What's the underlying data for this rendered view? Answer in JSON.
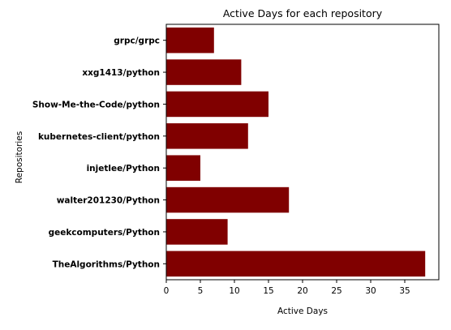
{
  "chart_data": {
    "type": "bar",
    "orientation": "horizontal",
    "title": "Active Days for each repository",
    "xlabel": "Active Days",
    "ylabel": "Repositories",
    "categories": [
      "TheAlgorithms/Python",
      "geekcomputers/Python",
      "walter201230/Python",
      "injetlee/Python",
      "kubernetes-client/python",
      "Show-Me-the-Code/python",
      "xxg1413/python",
      "grpc/grpc"
    ],
    "values": [
      38,
      9,
      18,
      5,
      12,
      15,
      11,
      7
    ],
    "xlim": [
      0,
      40
    ],
    "xticks": [
      "0",
      "5",
      "10",
      "15",
      "20",
      "25",
      "30",
      "35"
    ],
    "bar_color": "#800000",
    "grid": false,
    "legend": false
  }
}
